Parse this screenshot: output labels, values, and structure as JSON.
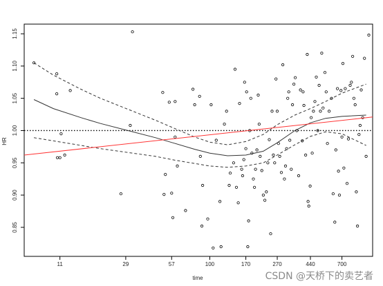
{
  "chart_data": {
    "type": "scatter",
    "title": "",
    "xlabel": "time",
    "ylabel": "HR",
    "x_tick_labels": [
      "11",
      "29",
      "57",
      "100",
      "170",
      "270",
      "440",
      "700"
    ],
    "x_scale": "log",
    "xlim": [
      6.5,
      1100
    ],
    "ylim": [
      0.805,
      1.165
    ],
    "y_ticks": [
      0.85,
      0.9,
      0.95,
      1.0,
      1.05,
      1.1,
      1.15
    ],
    "y_tick_labels": [
      "0.85",
      "0.90",
      "0.95",
      "1.00",
      "1.05",
      "1.10",
      "1.15"
    ],
    "reference_line": {
      "y": 1.0,
      "style": "dotted",
      "color": "#000000"
    },
    "grid": false,
    "colors": {
      "points": "#000000",
      "smooth": "#333333",
      "band": "#333333",
      "linear_fit": "#ff3333"
    },
    "series": [
      {
        "type": "scatter",
        "points": [
          [
            7.5,
            1.105
          ],
          [
            10.5,
            1.088
          ],
          [
            10.5,
            1.057
          ],
          [
            12.8,
            1.062
          ],
          [
            11.2,
            0.995
          ],
          [
            10.6,
            0.958
          ],
          [
            11.0,
            0.958
          ],
          [
            11.8,
            0.962
          ],
          [
            27,
            0.902
          ],
          [
            31,
            1.008
          ],
          [
            32,
            1.153
          ],
          [
            50,
            1.059
          ],
          [
            55,
            1.044
          ],
          [
            52,
            0.932
          ],
          [
            51,
            0.901
          ],
          [
            57,
            0.903
          ],
          [
            58,
            0.865
          ],
          [
            62,
            0.945
          ],
          [
            60,
            0.99
          ],
          [
            60,
            1.045
          ],
          [
            70,
            0.876
          ],
          [
            78,
            1.064
          ],
          [
            80,
            1.04
          ],
          [
            86,
            1.053
          ],
          [
            87,
            0.96
          ],
          [
            89,
            0.852
          ],
          [
            90,
            0.915
          ],
          [
            97,
            0.863
          ],
          [
            102,
            1.04
          ],
          [
            105,
            0.818
          ],
          [
            110,
            0.985
          ],
          [
            116,
            0.89
          ],
          [
            118,
            0.82
          ],
          [
            124,
            1.01
          ],
          [
            128,
            1.03
          ],
          [
            133,
            0.915
          ],
          [
            135,
            0.934
          ],
          [
            142,
            0.95
          ],
          [
            145,
            1.095
          ],
          [
            148,
            0.912
          ],
          [
            152,
            0.888
          ],
          [
            155,
            1.042
          ],
          [
            160,
            0.94
          ],
          [
            162,
            0.93
          ],
          [
            165,
            0.955
          ],
          [
            167,
            1.075
          ],
          [
            170,
            0.972
          ],
          [
            172,
            1.06
          ],
          [
            175,
            0.82
          ],
          [
            177,
            0.86
          ],
          [
            180,
            1.0
          ],
          [
            183,
            1.05
          ],
          [
            186,
            0.965
          ],
          [
            190,
            0.925
          ],
          [
            193,
            0.912
          ],
          [
            196,
            0.94
          ],
          [
            200,
            0.97
          ],
          [
            204,
            1.055
          ],
          [
            207,
            1.01
          ],
          [
            210,
            0.96
          ],
          [
            215,
            0.938
          ],
          [
            220,
            0.9
          ],
          [
            225,
            0.892
          ],
          [
            230,
            0.905
          ],
          [
            235,
            0.95
          ],
          [
            240,
            0.986
          ],
          [
            245,
            0.84
          ],
          [
            250,
            1.03
          ],
          [
            255,
            0.962
          ],
          [
            260,
            0.95
          ],
          [
            265,
            1.08
          ],
          [
            270,
            1.03
          ],
          [
            275,
            0.98
          ],
          [
            280,
            0.96
          ],
          [
            287,
            0.935
          ],
          [
            293,
            1.102
          ],
          [
            300,
            0.925
          ],
          [
            305,
            0.945
          ],
          [
            310,
            0.972
          ],
          [
            315,
            1.05
          ],
          [
            320,
            1.06
          ],
          [
            325,
            0.985
          ],
          [
            332,
            0.94
          ],
          [
            338,
            1.04
          ],
          [
            345,
            1.072
          ],
          [
            352,
            1.082
          ],
          [
            360,
            1.0
          ],
          [
            370,
            0.93
          ],
          [
            380,
            1.063
          ],
          [
            390,
            0.984
          ],
          [
            395,
            1.06
          ],
          [
            400,
            1.039
          ],
          [
            410,
            0.962
          ],
          [
            420,
            1.118
          ],
          [
            425,
            0.89
          ],
          [
            430,
            0.883
          ],
          [
            438,
            0.914
          ],
          [
            445,
            1.02
          ],
          [
            452,
            0.965
          ],
          [
            460,
            1.03
          ],
          [
            470,
            1.045
          ],
          [
            480,
            1.083
          ],
          [
            490,
            1.0
          ],
          [
            500,
            1.07
          ],
          [
            510,
            1.03
          ],
          [
            520,
            1.12
          ],
          [
            530,
            1.035
          ],
          [
            545,
            1.09
          ],
          [
            555,
            1.06
          ],
          [
            565,
            0.98
          ],
          [
            580,
            1.03
          ],
          [
            600,
            1.05
          ],
          [
            615,
            0.902
          ],
          [
            630,
            0.858
          ],
          [
            640,
            0.97
          ],
          [
            655,
            1.065
          ],
          [
            665,
            0.937
          ],
          [
            675,
            0.9
          ],
          [
            690,
            1.062
          ],
          [
            700,
            0.99
          ],
          [
            710,
            1.104
          ],
          [
            720,
            0.942
          ],
          [
            735,
            1.065
          ],
          [
            755,
            0.918
          ],
          [
            770,
            0.987
          ],
          [
            790,
            1.07
          ],
          [
            805,
            1.075
          ],
          [
            820,
            1.115
          ],
          [
            835,
            1.05
          ],
          [
            850,
            1.04
          ],
          [
            865,
            0.905
          ],
          [
            880,
            0.852
          ],
          [
            900,
            0.994
          ],
          [
            915,
            1.008
          ],
          [
            930,
            1.063
          ],
          [
            950,
            1.02
          ],
          [
            975,
            1.112
          ],
          [
            1000,
            0.96
          ],
          [
            1040,
            1.148
          ]
        ]
      },
      {
        "type": "line",
        "style": "solid",
        "x": [
          7.5,
          10,
          15,
          20,
          30,
          45,
          60,
          80,
          100,
          130,
          170,
          220,
          270,
          350,
          440,
          550,
          700,
          1000
        ],
        "y": [
          1.048,
          1.034,
          1.02,
          1.011,
          1.0,
          0.989,
          0.98,
          0.971,
          0.965,
          0.961,
          0.962,
          0.968,
          0.981,
          1.0,
          1.012,
          1.019,
          1.022,
          1.024
        ]
      },
      {
        "type": "line",
        "style": "dashed",
        "x": [
          7.5,
          10,
          15,
          20,
          30,
          45,
          60,
          80,
          100,
          130,
          170,
          220,
          270,
          350,
          440,
          550,
          700,
          1000
        ],
        "y": [
          1.105,
          1.086,
          1.064,
          1.05,
          1.033,
          1.016,
          1.003,
          0.99,
          0.982,
          0.978,
          0.983,
          0.994,
          1.009,
          1.024,
          1.034,
          1.045,
          1.058,
          1.072
        ]
      },
      {
        "type": "line",
        "style": "dashed",
        "x": [
          7.5,
          10,
          15,
          20,
          30,
          45,
          60,
          80,
          100,
          130,
          170,
          220,
          270,
          350,
          440,
          550,
          700,
          1000
        ],
        "y": [
          0.989,
          0.984,
          0.977,
          0.972,
          0.966,
          0.96,
          0.954,
          0.949,
          0.945,
          0.943,
          0.945,
          0.95,
          0.962,
          0.978,
          0.991,
          0.998,
          0.995,
          0.977
        ]
      },
      {
        "type": "line",
        "style": "solid",
        "fit": "linear",
        "x": [
          6.5,
          1100
        ],
        "y": [
          0.962,
          1.021
        ]
      }
    ]
  },
  "watermark": "CSDN @天桥下的卖艺者"
}
